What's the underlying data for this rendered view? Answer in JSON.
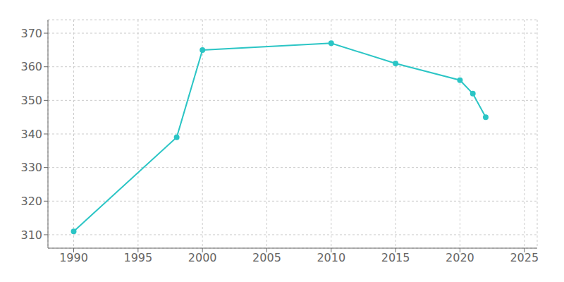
{
  "chart_data": {
    "type": "line",
    "x": [
      1990,
      1998,
      2000,
      2010,
      2015,
      2020,
      2021,
      2022
    ],
    "values": [
      311,
      339,
      365,
      367,
      361,
      356,
      352,
      345
    ],
    "color": "#2bc5c5",
    "marker": "circle",
    "xlim": [
      1988,
      2026
    ],
    "ylim": [
      306,
      374
    ],
    "xticks": [
      1990,
      1995,
      2000,
      2005,
      2010,
      2015,
      2020,
      2025
    ],
    "yticks": [
      310,
      320,
      330,
      340,
      350,
      360,
      370
    ],
    "grid": true
  }
}
